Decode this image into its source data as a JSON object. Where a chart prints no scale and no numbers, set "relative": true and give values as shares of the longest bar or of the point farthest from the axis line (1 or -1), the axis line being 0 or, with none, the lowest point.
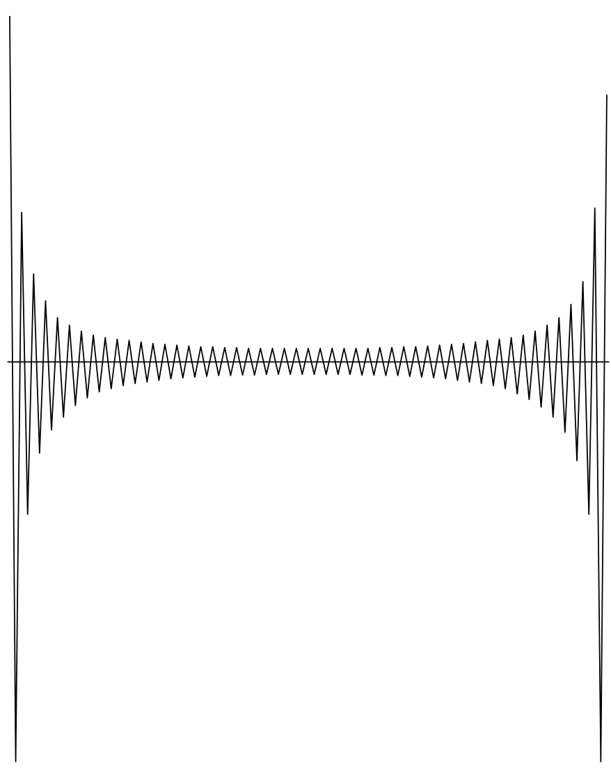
{
  "chart_data": {
    "type": "line",
    "relative": true,
    "categories": [
      null,
      null,
      null,
      null,
      null,
      null,
      null,
      null,
      null,
      null,
      null,
      null,
      null,
      null,
      null,
      null,
      null,
      null,
      null,
      null,
      null,
      null,
      null,
      null,
      null,
      null,
      null,
      null,
      null,
      null,
      null,
      null,
      null,
      null,
      null,
      null,
      null,
      null,
      null,
      null,
      null,
      null,
      null,
      null,
      null,
      null,
      null,
      null,
      null,
      null,
      null,
      null,
      null,
      null,
      null,
      null,
      null,
      null,
      null,
      null,
      null,
      null,
      null,
      null,
      null,
      null,
      null,
      null,
      null,
      null,
      null,
      null,
      null,
      null,
      null,
      null,
      null,
      null,
      null,
      null,
      null,
      null,
      null,
      null,
      null,
      null,
      null,
      null,
      null,
      null,
      null,
      null,
      null,
      null,
      null,
      null,
      null,
      null,
      null,
      null,
      null
    ],
    "series": [
      {
        "color": "#000000",
        "values": [
          0.864,
          -1,
          0.374,
          -0.381,
          0.22,
          -0.228,
          0.153,
          -0.17,
          0.111,
          -0.138,
          0.092,
          -0.109,
          0.077,
          -0.09,
          0.067,
          -0.075,
          0.061,
          -0.067,
          0.057,
          -0.059,
          0.054,
          -0.054,
          0.05,
          -0.05,
          0.046,
          -0.046,
          0.044,
          -0.042,
          0.042,
          -0.04,
          0.04,
          -0.038,
          0.038,
          -0.036,
          0.038,
          -0.034,
          0.036,
          -0.034,
          0.036,
          -0.033,
          0.034,
          -0.033,
          0.034,
          -0.031,
          0.034,
          -0.031,
          0.034,
          -0.031,
          0.034,
          -0.031,
          0.034,
          -0.031,
          0.034,
          -0.031,
          0.034,
          -0.031,
          0.034,
          -0.031,
          0.034,
          -0.033,
          0.034,
          -0.033,
          0.036,
          -0.034,
          0.036,
          -0.034,
          0.038,
          -0.036,
          0.038,
          -0.038,
          0.04,
          -0.04,
          0.042,
          -0.042,
          0.044,
          -0.046,
          0.046,
          -0.05,
          0.05,
          -0.054,
          0.054,
          -0.059,
          0.057,
          -0.067,
          0.061,
          -0.08,
          0.067,
          -0.094,
          0.077,
          -0.113,
          0.092,
          -0.138,
          0.111,
          -0.176,
          0.144,
          -0.247,
          0.201,
          -0.381,
          0.385,
          -1,
          0.667
        ]
      }
    ]
  }
}
